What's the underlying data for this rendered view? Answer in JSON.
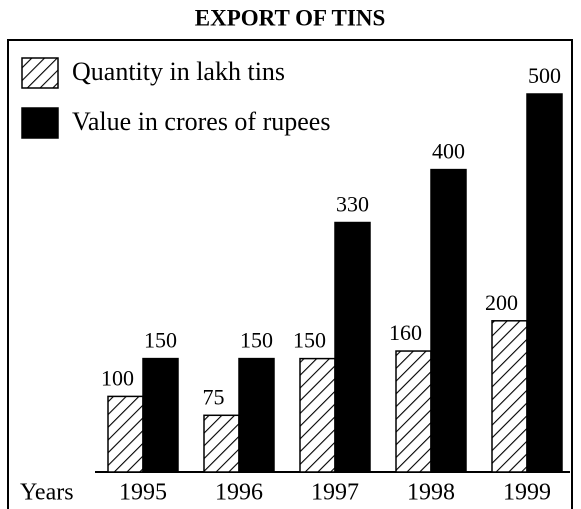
{
  "chart_data": {
    "type": "bar",
    "title": "EXPORT OF TINS",
    "xlabel": "Years",
    "categories": [
      "1995",
      "1996",
      "1997",
      "1998",
      "1999"
    ],
    "series": [
      {
        "name": "Quantity in lakh tins",
        "color": "#000000",
        "pattern": "hatch",
        "values": [
          100,
          75,
          150,
          160,
          200
        ]
      },
      {
        "name": "Value in crores of rupees",
        "color": "#000000",
        "pattern": "solid",
        "values": [
          150,
          150,
          330,
          400,
          500
        ]
      }
    ]
  }
}
